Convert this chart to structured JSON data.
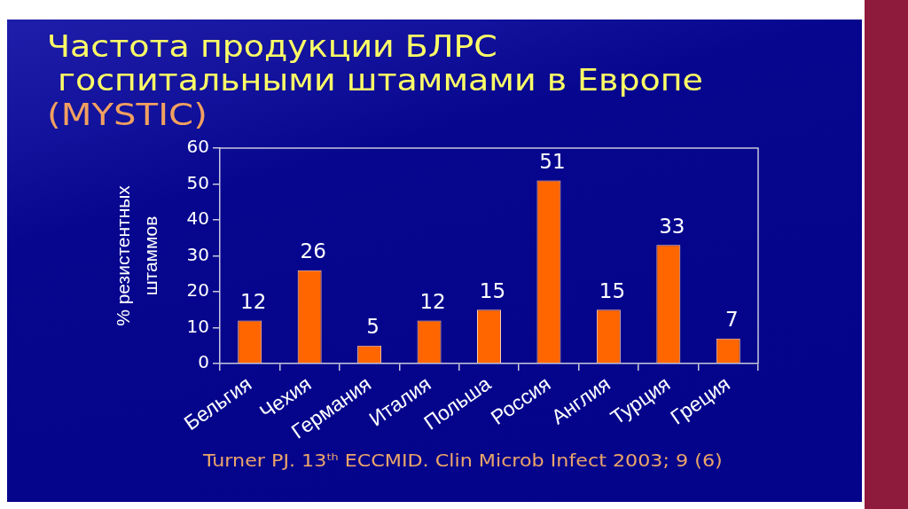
{
  "chart_data": {
    "type": "bar",
    "title": "Частота продукции БЛРС\n госпитальными штаммами в Европе",
    "subtitle": "(MYSTIC)",
    "ylabel": "% резистентных\nштаммов",
    "categories": [
      "Бельгия",
      "Чехия",
      "Германия",
      "Италия",
      "Польша",
      "Россия",
      "Англия",
      "Турция",
      "Греция"
    ],
    "values": [
      12,
      26,
      5,
      12,
      15,
      51,
      15,
      33,
      7
    ],
    "color": "#ff6600",
    "ylim": [
      0,
      60
    ],
    "yticks": [
      0,
      10,
      20,
      30,
      40,
      50,
      60
    ],
    "data_labels": true,
    "annotations": [
      "Turner PJ. 13$^{th}$ ECCMID. Clin Microb Infect 2003; 9 (6)"
    ]
  }
}
